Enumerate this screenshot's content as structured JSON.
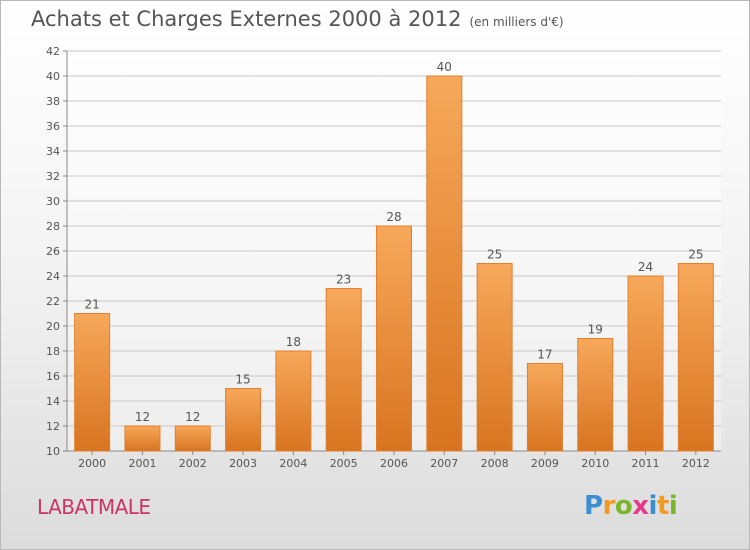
{
  "title": "Achats et Charges Externes 2000 à 2012",
  "subtitle": "(en milliers d'€)",
  "commune": "LABATMALE",
  "logo": {
    "letters": [
      "P",
      "r",
      "o",
      "x",
      "i",
      "t",
      "i"
    ],
    "colors": [
      "#3a8fd0",
      "#f29a1e",
      "#7ab52c",
      "#e83a8c",
      "#3a8fd0",
      "#f29a1e",
      "#7ab52c"
    ]
  },
  "colors": {
    "bar_top": "#f7a85a",
    "bar_bottom": "#d87420",
    "bar_edge": "#e08030",
    "grid": "#c8c8c8",
    "axis_text": "#555555",
    "title_text": "#555555",
    "commune_text": "#cc3366"
  },
  "chart_data": {
    "type": "bar",
    "categories": [
      "2000",
      "2001",
      "2002",
      "2003",
      "2004",
      "2005",
      "2006",
      "2007",
      "2008",
      "2009",
      "2010",
      "2011",
      "2012"
    ],
    "values": [
      21,
      12,
      12,
      15,
      18,
      23,
      28,
      40,
      25,
      17,
      19,
      24,
      25
    ],
    "data_labels": [
      "21",
      "12",
      "12",
      "15",
      "18",
      "23",
      "28",
      "40",
      "25",
      "17",
      "19",
      "24",
      "25"
    ],
    "title": "Achats et Charges Externes 2000 à 2012",
    "subtitle": "(en milliers d'€)",
    "ylim": [
      10,
      42
    ],
    "yticks": [
      10,
      12,
      14,
      16,
      18,
      20,
      22,
      24,
      26,
      28,
      30,
      32,
      34,
      36,
      38,
      40,
      42
    ],
    "ytick_labels": [
      "10",
      "12",
      "14",
      "16",
      "18",
      "20",
      "22",
      "24",
      "26",
      "28",
      "30",
      "32",
      "34",
      "36",
      "38",
      "40",
      "42"
    ],
    "grid": true,
    "legend": "none"
  }
}
